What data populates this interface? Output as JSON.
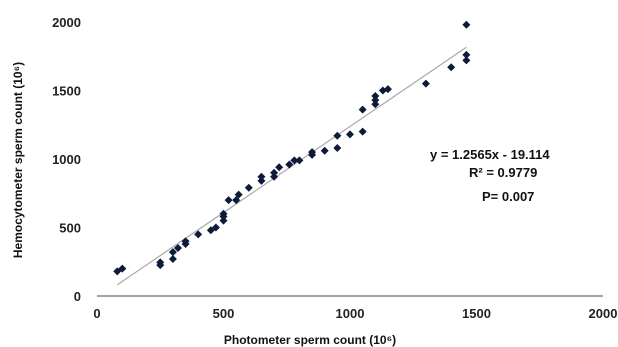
{
  "chart_data": {
    "type": "scatter",
    "title": "",
    "xlabel": "Photometer  sperm count (10⁶)",
    "ylabel": "Hemocytometer  sperm count (10⁶)",
    "xlim": [
      0,
      2000
    ],
    "ylim": [
      0,
      2000
    ],
    "xticks": [
      "0",
      "500",
      "1000",
      "1500",
      "2000"
    ],
    "yticks": [
      "0",
      "500",
      "1000",
      "1500",
      "2000"
    ],
    "grid": false,
    "legend": "none",
    "marker_color": "#0d1a3a",
    "trendline_color": "#a9a9a9",
    "trendline": {
      "slope": 1.2565,
      "intercept": -19.114,
      "x_range": [
        80,
        1460
      ]
    },
    "annotations": {
      "equation": "y = 1.2565x - 19.114",
      "r_squared": "R² = 0.9779",
      "p_value": "P= 0.007"
    },
    "series": [
      {
        "x": [
          80,
          100,
          250,
          250,
          300,
          300,
          320,
          350,
          350,
          400,
          450,
          470,
          500,
          500,
          500,
          520,
          550,
          560,
          600,
          650,
          650,
          700,
          700,
          720,
          760,
          780,
          800,
          850,
          850,
          900,
          950,
          950,
          1000,
          1050,
          1050,
          1100,
          1100,
          1100,
          1130,
          1150,
          1300,
          1400,
          1460,
          1460,
          1460
        ],
        "y": [
          180,
          200,
          225,
          245,
          270,
          320,
          350,
          380,
          400,
          450,
          480,
          500,
          550,
          580,
          600,
          700,
          700,
          740,
          790,
          840,
          870,
          870,
          900,
          940,
          960,
          990,
          990,
          1030,
          1050,
          1060,
          1080,
          1170,
          1180,
          1200,
          1360,
          1400,
          1430,
          1460,
          1500,
          1510,
          1550,
          1670,
          1720,
          1760,
          1980
        ]
      }
    ]
  }
}
